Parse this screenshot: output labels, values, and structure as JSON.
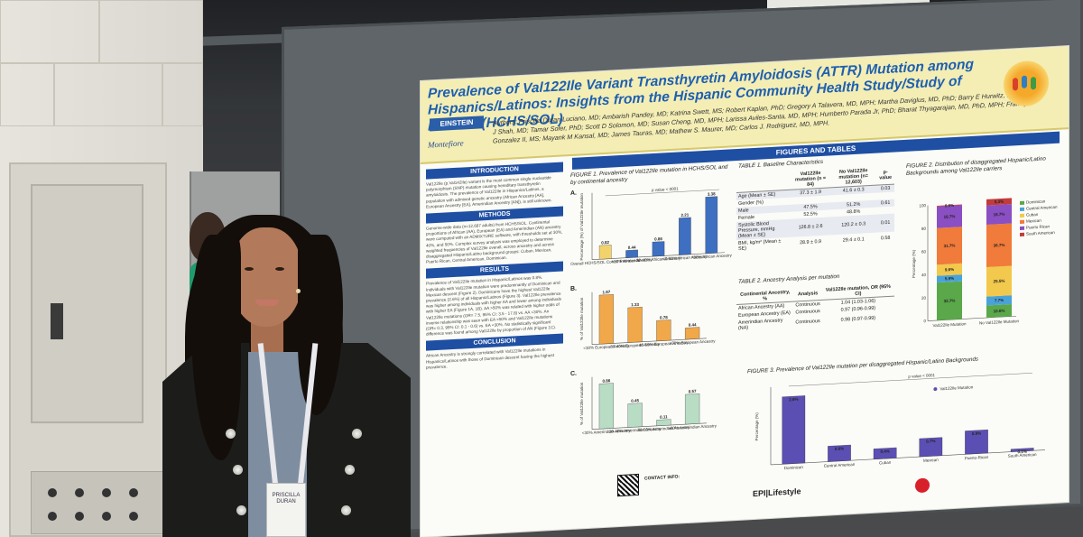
{
  "poster": {
    "title": "Prevalence of Val122Ile Variant Transthyretin Amyloidosis (ATTR) Mutation among Hispanics/Latinos: Insights from the Hispanic Community Health Study/Study of Latinos (HCHS/SOL)",
    "authors": "Authors: Priscilla Duran Luciano, MD; Ambarish Pandey, MD; Katrina Swett, MS; Robert Kaplan, PhD; Gregory A Talavera, MD, MPH; Martha Daviglus, MD, PhD; Barry E Hurwitz, PhD; Sanjiv J Shah, MD; Tamar Sofer, PhD; Scott D Solomon, MD; Susan Cheng, MD, MPH; Larissa Aviles-Santa, MD, MPH; Humberto Parada Jr, PhD; Bharat Thyagarajan, MD, PhD, MPH; Franklyn Gonzalez II, MS; Mayank M Kansal, MD; James Tauras, MD; Mathew S. Maurer, MD; Carlos J. Rodriguez, MD, MPH.",
    "logo_einstein": "EINSTEIN",
    "logo_montefiore": "Montefiore",
    "figures_header": "FIGURES AND TABLES",
    "sections": {
      "introduction": {
        "heading": "INTRODUCTION",
        "text": "Val122Ile (p.Val142Ile) variant is the most common single nucleotide polymorphism (SNP) mutation causing hereditary transthyretin amyloidosis. The prevalence of Val122Ile in Hispanics/Latinos, a population with admixed genetic ancestry (African Ancestry [AA], European Ancestry [EA], Amerindian Ancestry [AN]), is still unknown."
      },
      "methods": {
        "heading": "METHODS",
        "text": "Genome-wide data (n=12,687 adults) from HCHS/SOL. Continental proportions of African (AA), European (EA) and Amerindian (AN) ancestry were computed with an ADMIXTURE software, with thresholds set at 30%, 40%, and 50%. Complex survey analysis was employed to determine weighted frequencies of Val122Ile overall, across ancestry and across disaggregated Hispanic/Latino background groups: Cuban, Mexican, Puerto Rican, Central American, Dominican."
      },
      "results": {
        "heading": "RESULTS",
        "text": "Prevalence of Val122Ile mutation in Hispanic/Latinos was 0.8%. Individuals with Val122Ile mutation were predominantly of Dominican and Mexican descent (Figure 2). Dominicans have the highest Val122Ile prevalence (2.6%) of all Hispanic/Latinos (Figure 3). Val122Ile prevalence was higher among individuals with higher AA and lower among individuals with higher EA (Figure 1A, 1B). AA >50% was related with higher odds of Val122Ile mutations (OR= 7.5, 95% CI: 3.5 - 17.8) vs. AA <30%. An inverse relationship was seen with EA >50% and Val122Ile mutations (OR= 0.3, 95% CI: 0.1 - 0.6) vs. EA <30%. No statistically significant difference was found among Val122Ile by proportion of AN (Figure 1C)."
      },
      "conclusion": {
        "heading": "CONCLUSION",
        "text": "African Ancestry is strongly correlated with Val122Ile mutations in Hispanics/Latinos with those of Dominican descent having the highest prevalence."
      }
    },
    "figure1": {
      "caption": "FIGURE 1. Prevalence of Val122Ile mutation in HCHS/SOL and by continental ancestry",
      "pvalue": "p value < 0001",
      "panel_a": "A.",
      "panel_b": "B.",
      "panel_c": "C."
    },
    "table1": {
      "caption": "TABLE 1. Baseline Characteristics",
      "headers": [
        "",
        "Val122Ile mutation (n = 84)",
        "No Val122Ile mutation (n= 12,603)",
        "p-value"
      ],
      "rows": [
        [
          "Age (Mean ± SE)",
          "37.3 ± 1.9",
          "41.6 ± 0.3",
          "0.03"
        ],
        [
          "Gender (%)",
          "",
          "",
          ""
        ],
        [
          "Male",
          "47.5%",
          "51.2%",
          "0.61"
        ],
        [
          "Female",
          "52.5%",
          "48.8%",
          ""
        ],
        [
          "Systolic Blood Pressure, mmHg (Mean ± SE)",
          "126.8 ± 2.6",
          "120.2 ± 0.3",
          "0.01"
        ],
        [
          "BMI, kg/m² (Mean ± SE)",
          "28.9 ± 0.9",
          "29.4 ± 0.1",
          "0.58"
        ]
      ]
    },
    "table2": {
      "caption": "TABLE 2. Ancestry Analysis per mutation",
      "headers": [
        "Continental Ancestry, %",
        "Analysis",
        "Val122Ile mutation, OR (95% CI)"
      ],
      "rows": [
        [
          "African Ancestry (AA)",
          "Continuous",
          "1.04 (1.03-1.06)"
        ],
        [
          "European Ancestry (EA)",
          "Continuous",
          "0.97 (0.96-0.99)"
        ],
        [
          "Amerindian Ancestry (NA)",
          "Continuous",
          "0.98 (0.97-0.99)"
        ]
      ]
    },
    "figure2": {
      "caption": "FIGURE 2. Distribution of disaggregated Hispanic/Latino Backgrounds among Val122Ile carriers",
      "ylabel": "Percentage (%)",
      "categories": [
        "Val122Ile Mutation",
        "No Val122Ile Mutation"
      ]
    },
    "figure3": {
      "caption": "FIGURE 3. Prevalence of Val122Ile mutation per disaggregated Hispanic/Latino Backgrounds",
      "pvalue": "p value < 0001",
      "legend": "Val122Ile Mutation",
      "ylabel": "Percentage (%)"
    },
    "footer_logo": "EPI|Lifestyle",
    "contact_label": "CONTACT INFO:"
  },
  "presenter": {
    "badge_name": "PRISCILLA",
    "badge_last": "DURAN"
  },
  "chart_data": [
    {
      "type": "bar",
      "title": "Figure 1A",
      "categories": [
        "Overall HCHS/SOL Cohort Prevalence",
        "<30% African Ancestry",
        "30-40% African Ancestry",
        "40-50% African Ancestry",
        ">50% African Ancestry"
      ],
      "values": [
        0.82,
        0.44,
        0.86,
        2.21,
        3.38
      ],
      "colors": [
        "#f2d36b",
        "#3e6fc1",
        "#3e6fc1",
        "#3e6fc1",
        "#3e6fc1"
      ],
      "ylabel": "Percentage (%) of Val122Ile mutation",
      "ylim": [
        0,
        4
      ]
    },
    {
      "type": "bar",
      "title": "Figure 1B",
      "categories": [
        "<30% European Ancestry",
        "30-40% European Ancestry",
        "40-50% European Ancestry",
        ">50% European Ancestry"
      ],
      "values": [
        1.87,
        1.33,
        0.78,
        0.44
      ],
      "colors": [
        "#f0a84a",
        "#f0a84a",
        "#f0a84a",
        "#f0a84a"
      ],
      "ylabel": "% of Val122Ile mutation",
      "ylim": [
        0,
        2
      ]
    },
    {
      "type": "bar",
      "title": "Figure 1C",
      "categories": [
        "<30% Amerindian Ancestry",
        "30-40% Amerindian Ancestry",
        "40-50% Amerindian Ancestry",
        ">50% Amerindian Ancestry"
      ],
      "values": [
        0.86,
        0.45,
        0.11,
        0.57
      ],
      "colors": [
        "#b8dcc4",
        "#b8dcc4",
        "#b8dcc4",
        "#b8dcc4"
      ],
      "ylabel": "% of Val122Ile mutation",
      "ylim": [
        0,
        1
      ]
    },
    {
      "type": "bar",
      "title": "Figure 2",
      "categories": [
        "Val122Ile Mutation",
        "No Val122Ile Mutation"
      ],
      "series": [
        {
          "name": "Dominican",
          "values": [
            32.7,
            10.6
          ],
          "color": "#5aa84a"
        },
        {
          "name": "Central American",
          "values": [
            5.9,
            7.7
          ],
          "color": "#4aa3d8"
        },
        {
          "name": "Cuban",
          "values": [
            9.6,
            25.5
          ],
          "color": "#f2c94c"
        },
        {
          "name": "Mexican",
          "values": [
            31.7,
            36.7
          ],
          "color": "#f07b3a"
        },
        {
          "name": "Puerto Rican",
          "values": [
            18.7,
            16.7
          ],
          "color": "#8a4fc2"
        },
        {
          "name": "South American",
          "values": [
            0.6,
            5.3
          ],
          "color": "#c23b3b"
        }
      ],
      "ylabel": "Percentage (%)",
      "ylim": [
        0,
        100
      ]
    },
    {
      "type": "bar",
      "title": "Figure 3",
      "categories": [
        "Dominican",
        "Central American",
        "Cuban",
        "Mexican",
        "Puerto-Rican",
        "South American"
      ],
      "values": [
        2.6,
        0.6,
        0.4,
        0.7,
        0.9,
        0.1
      ],
      "colors": [
        "#5b4fb3",
        "#5b4fb3",
        "#5b4fb3",
        "#5b4fb3",
        "#5b4fb3",
        "#5b4fb3"
      ],
      "series_name": "Val122Ile Mutation",
      "ylabel": "Percentage (%)",
      "ylim": [
        0,
        3
      ]
    }
  ]
}
